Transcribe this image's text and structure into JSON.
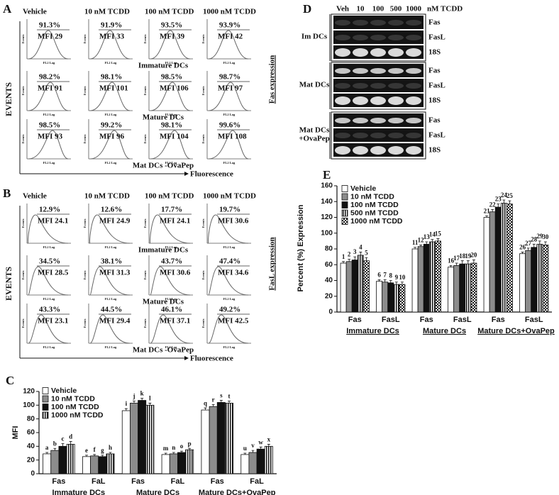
{
  "panels": {
    "A": {
      "label": "A",
      "columns": [
        "Vehicle",
        "10 nM TCDD",
        "100 nM TCDD",
        "1000 nM TCDD"
      ],
      "y_label": "EVENTS",
      "x_label": "Fluorescence",
      "side_label": "Fas expression",
      "axis_x": "FL2 Log",
      "axis_y": "Events",
      "rows": [
        {
          "label": "Immature DCs",
          "cells": [
            {
              "pct": "91.3%",
              "mfi": "MFI 29"
            },
            {
              "pct": "91.9%",
              "mfi": "MFI 33"
            },
            {
              "pct": "93.5%",
              "mfi": "MFI 39"
            },
            {
              "pct": "93.9%",
              "mfi": "MFI 42"
            }
          ]
        },
        {
          "label": "Mature DCs",
          "cells": [
            {
              "pct": "98.2%",
              "mfi": "MFI 91"
            },
            {
              "pct": "98.1%",
              "mfi": "MFI 101"
            },
            {
              "pct": "98.5%",
              "mfi": "MFI 106"
            },
            {
              "pct": "98.7%",
              "mfi": "MFI 97"
            }
          ]
        },
        {
          "label": "Mat DCs -OvaPep",
          "cells": [
            {
              "pct": "98.5%",
              "mfi": "MFI 93"
            },
            {
              "pct": "99.2%",
              "mfi": "MFI 96"
            },
            {
              "pct": "98.1%",
              "mfi": "MFI 104"
            },
            {
              "pct": "99.6%",
              "mfi": "MFI 108"
            }
          ]
        }
      ]
    },
    "B": {
      "label": "B",
      "columns": [
        "Vehicle",
        "10 nM TCDD",
        "100 nM TCDD",
        "1000 nM TCDD"
      ],
      "y_label": "EVENTS",
      "x_label": "Fluorescence",
      "side_label": "FasL expression",
      "axis_x": "FL2 Log",
      "axis_y": "Events",
      "rows": [
        {
          "label": "Immature DCs",
          "cells": [
            {
              "pct": "12.9%",
              "mfi": "MFI 24.1"
            },
            {
              "pct": "12.6%",
              "mfi": "MFI 24.9"
            },
            {
              "pct": "17.7%",
              "mfi": "MFI 24.1"
            },
            {
              "pct": "19.7%",
              "mfi": "MFI 30.6"
            }
          ]
        },
        {
          "label": "Mature DCs",
          "cells": [
            {
              "pct": "34.5%",
              "mfi": "MFI 28.5"
            },
            {
              "pct": "38.1%",
              "mfi": "MFI 31.3"
            },
            {
              "pct": "43.7%",
              "mfi": "MFI 30.6"
            },
            {
              "pct": "47.4%",
              "mfi": "MFI 34.6"
            }
          ]
        },
        {
          "label": "Mat DCs -OvaPep",
          "cells": [
            {
              "pct": "43.3%",
              "mfi": "MFI 23.1"
            },
            {
              "pct": "44.5%",
              "mfi": "MFI 29.4"
            },
            {
              "pct": "46.1%",
              "mfi": "MFI 37.1"
            },
            {
              "pct": "49.2%",
              "mfi": "MFI 42.5"
            }
          ]
        }
      ]
    },
    "D": {
      "label": "D",
      "lanes": [
        "Veh",
        "10",
        "100",
        "500",
        "1000"
      ],
      "unit": "nM TCDD",
      "groups": [
        {
          "label": [
            "Im DCs"
          ],
          "bands": [
            "Fas",
            "FasL",
            "18S"
          ]
        },
        {
          "label": [
            "Mat DCs"
          ],
          "bands": [
            "Fas",
            "FasL",
            "18S"
          ]
        },
        {
          "label": [
            "Mat DCs",
            "+OvaPep"
          ],
          "bands": [
            "Fas",
            "FasL",
            "18S"
          ]
        }
      ]
    }
  },
  "chart_data": [
    {
      "type": "bar",
      "label": "C",
      "ylabel": "MFI",
      "ylim": [
        0,
        120
      ],
      "yticks": [
        0,
        20,
        40,
        60,
        80,
        100,
        120
      ],
      "categories": [
        "Fas",
        "FaL",
        "Fas",
        "FaL",
        "Fas",
        "FaL"
      ],
      "groups": [
        "Immature DCs",
        "Mature DCs",
        "Mature DCs+OvaPep"
      ],
      "series": [
        {
          "name": "Vehicle",
          "color": "#ffffff",
          "pattern": null,
          "values": [
            29,
            25,
            92,
            28,
            93,
            28
          ],
          "errors": [
            2,
            2,
            3,
            2,
            3,
            2
          ],
          "letters": [
            "a",
            "e",
            "i",
            "m",
            "q",
            "u"
          ]
        },
        {
          "name": "10 nM TCDD",
          "color": "#8c8c8c",
          "pattern": null,
          "values": [
            34,
            26,
            103,
            29,
            98,
            31
          ],
          "errors": [
            3,
            2,
            3,
            2,
            3,
            3
          ],
          "letters": [
            "b",
            "f",
            "j",
            "n",
            "r",
            "v"
          ]
        },
        {
          "name": "100 nM TCDD",
          "color": "#111111",
          "pattern": null,
          "values": [
            40,
            25,
            107,
            31,
            104,
            36
          ],
          "errors": [
            4,
            2,
            3,
            2,
            3,
            3
          ],
          "letters": [
            "c",
            "g",
            "k",
            "o",
            "s",
            "w"
          ]
        },
        {
          "name": "1000 nM TCDD",
          "color": "#111111",
          "pattern": "vstripes",
          "values": [
            43,
            29,
            100,
            35,
            103,
            40
          ],
          "errors": [
            4,
            2,
            3,
            2,
            3,
            3
          ],
          "letters": [
            "d",
            "h",
            "l",
            "p",
            "t",
            "x"
          ]
        }
      ]
    },
    {
      "type": "bar",
      "label": "E",
      "ylabel": "Percent (%) Expression",
      "ylim": [
        0,
        160
      ],
      "yticks": [
        0,
        20,
        40,
        60,
        80,
        100,
        120,
        140,
        160
      ],
      "categories": [
        "Fas",
        "FasL",
        "Fas",
        "FasL",
        "Fas",
        "FasL"
      ],
      "groups": [
        "Immature DCs",
        "Mature DCs",
        "Mature DCs+OvaPep"
      ],
      "series": [
        {
          "name": "Vehicle",
          "color": "#ffffff",
          "pattern": null,
          "values": [
            62,
            39,
            80,
            57,
            120,
            74
          ],
          "errors": [
            2,
            2,
            2,
            2,
            2,
            2
          ],
          "letters": [
            "1",
            "6",
            "11",
            "16",
            "21",
            "26"
          ]
        },
        {
          "name": "10 nM TCDD",
          "color": "#8c8c8c",
          "pattern": null,
          "values": [
            64,
            38,
            83,
            59,
            127,
            78
          ],
          "errors": [
            3,
            3,
            2,
            3,
            3,
            3
          ],
          "letters": [
            "2",
            "7",
            "12",
            "17",
            "22",
            "27"
          ]
        },
        {
          "name": "100 nM TCDD",
          "color": "#111111",
          "pattern": null,
          "values": [
            66,
            37,
            86,
            61,
            133,
            82
          ],
          "errors": [
            4,
            3,
            3,
            4,
            4,
            4
          ],
          "letters": [
            "3",
            "8",
            "13",
            "18",
            "23",
            "28"
          ]
        },
        {
          "name": "500 nM TCDD",
          "color": "#111111",
          "pattern": "vstripes",
          "values": [
            72,
            35,
            89,
            61,
            138,
            86
          ],
          "errors": [
            4,
            3,
            3,
            4,
            4,
            4
          ],
          "letters": [
            "4",
            "9",
            "14",
            "19",
            "24",
            "29"
          ]
        },
        {
          "name": "1000 nM TCDD",
          "color": "#111111",
          "pattern": "checker",
          "values": [
            65,
            35,
            90,
            62,
            137,
            85
          ],
          "errors": [
            4,
            3,
            3,
            4,
            4,
            4
          ],
          "letters": [
            "5",
            "10",
            "15",
            "20",
            "25",
            "30"
          ]
        }
      ]
    }
  ]
}
